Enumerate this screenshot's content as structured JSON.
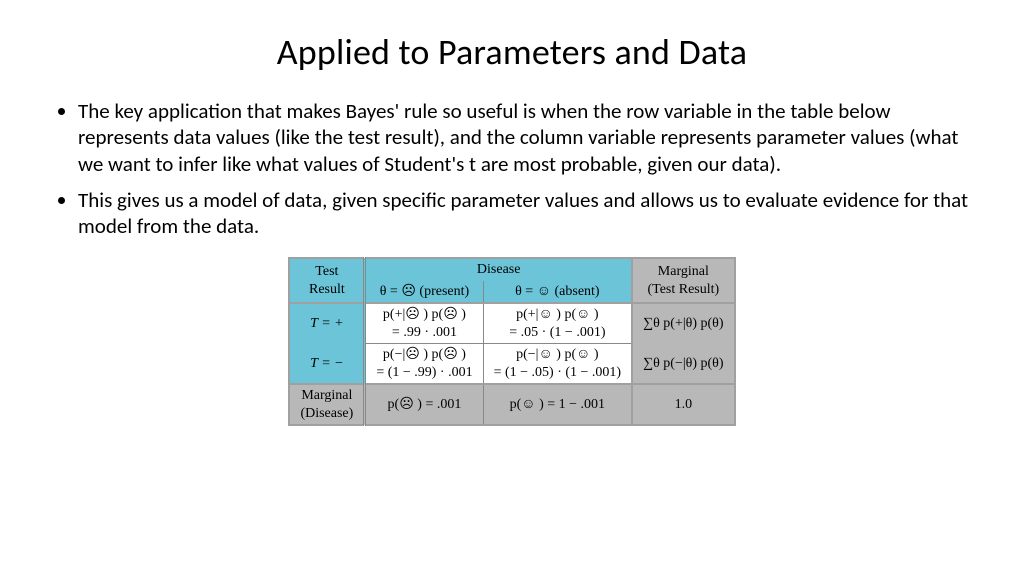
{
  "title": "Applied to Parameters and Data",
  "bullets": [
    "The key application that makes Bayes' rule so useful is when the row variable in the table below represents data values (like the test result), and the column variable represents parameter values (what we want to infer like what values of Student's t are most probable, given our data).",
    "This gives us a model of data, given specific parameter values and allows us to evaluate evidence for that model from the data."
  ],
  "table": {
    "header": {
      "test_result": "Test\nResult",
      "disease": "Disease",
      "theta_present": "θ = ☹  (present)",
      "theta_absent": "θ = ☺  (absent)",
      "marginal": "Marginal\n(Test Result)"
    },
    "rows": [
      {
        "label": "T = +",
        "present": "p(+|☹ ) p(☹ )\n= .99 · .001",
        "absent": "p(+|☺ ) p(☺ )\n= .05 · (1 − .001)",
        "marginal": "∑θ p(+|θ) p(θ)"
      },
      {
        "label": "T = −",
        "present": "p(−|☹ ) p(☹ )\n= (1 − .99) · .001",
        "absent": "p(−|☺ ) p(☺ )\n= (1 − .05) · (1 − .001)",
        "marginal": "∑θ p(−|θ) p(θ)"
      }
    ],
    "footer": {
      "label": "Marginal\n(Disease)",
      "present": "p(☹ ) = .001",
      "absent": "p(☺ ) = 1 − .001",
      "marginal": "1.0"
    },
    "colors": {
      "header_blue": "#6bc4d8",
      "header_grey": "#b8b8b8",
      "border": "#a0a0a0",
      "background": "#ffffff"
    },
    "font": {
      "family": "Times New Roman",
      "size_pt": 11
    }
  }
}
